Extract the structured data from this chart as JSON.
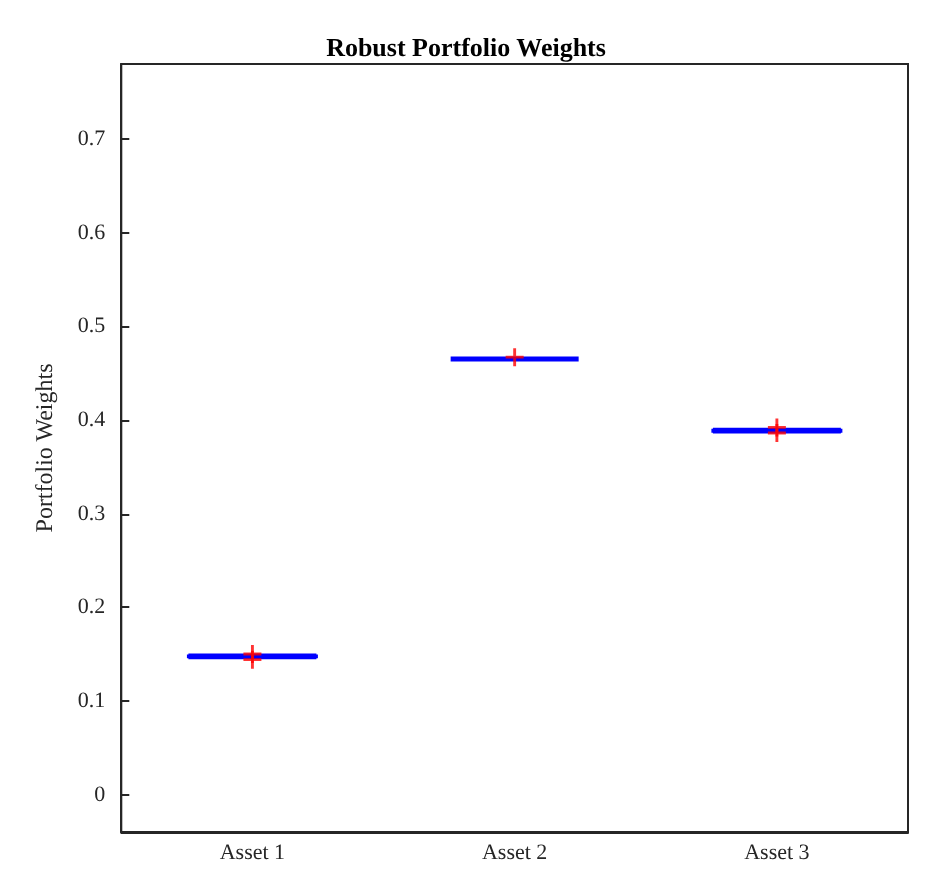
{
  "chart_data": {
    "type": "box",
    "title": "Robust Portfolio Weights",
    "ylabel": "Portfolio Weights",
    "categories": [
      "Asset 1",
      "Asset 2",
      "Asset 3"
    ],
    "ylim": [
      -0.04,
      0.78
    ],
    "yticks": [
      0,
      0.1,
      0.2,
      0.3,
      0.4,
      0.5,
      0.6,
      0.7
    ],
    "grid": false,
    "series": [
      {
        "color": "#0000ff",
        "boxes": [
          {
            "low": 0.146,
            "q1": 0.147,
            "median": 0.147,
            "q3": 0.148,
            "high": 0.149
          },
          {
            "low": 0.464,
            "q1": 0.465,
            "median": 0.465,
            "q3": 0.465,
            "high": 0.466
          },
          {
            "low": 0.387,
            "q1": 0.388,
            "median": 0.389,
            "q3": 0.389,
            "high": 0.39
          }
        ]
      },
      {
        "type": "scatter",
        "color": "#ff0000",
        "marker": "cross",
        "x": [
          "Asset 1",
          "Asset 1",
          "Asset 2",
          "Asset 3",
          "Asset 3"
        ],
        "values": [
          0.144,
          0.15,
          0.467,
          0.386,
          0.392
        ]
      }
    ]
  }
}
